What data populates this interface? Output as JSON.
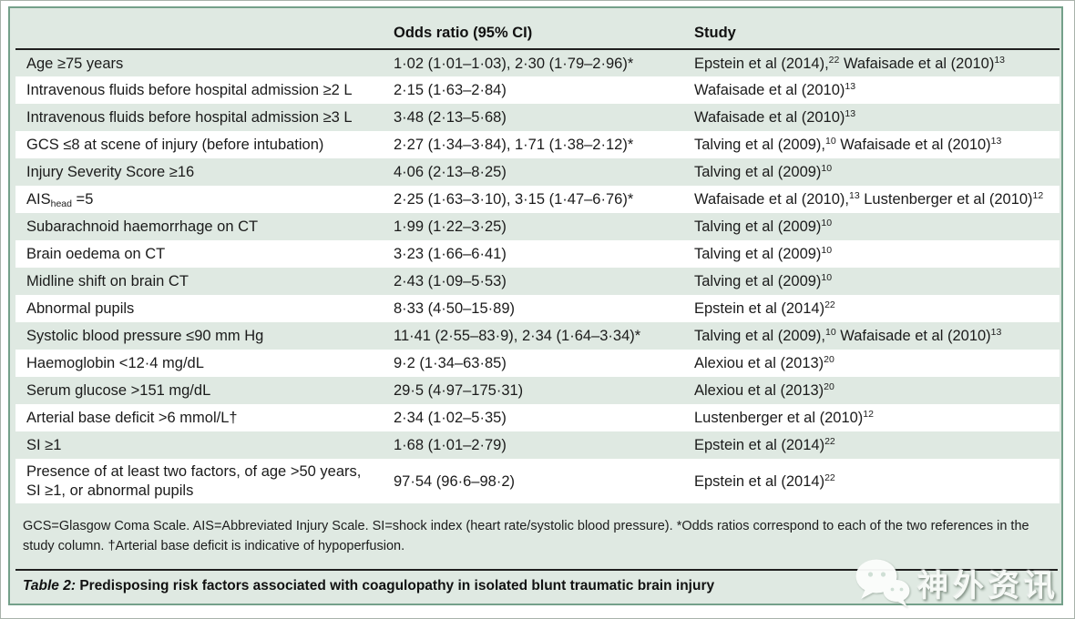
{
  "table": {
    "headers": [
      "",
      "Odds ratio (95% CI)",
      "Study"
    ],
    "rows": [
      {
        "factor": "Age ≥75 years",
        "odds_ratio": "1·02 (1·01–1·03), 2·30 (1·79–2·96)*",
        "study": "Epstein et al (2014),^22^ Wafaisade et al (2010)^13^"
      },
      {
        "factor": "Intravenous fluids before hospital admission ≥2 L",
        "odds_ratio": "2·15 (1·63–2·84)",
        "study": "Wafaisade et al (2010)^13^"
      },
      {
        "factor": "Intravenous fluids before hospital admission ≥3 L",
        "odds_ratio": "3·48 (2·13–5·68)",
        "study": "Wafaisade et al (2010)^13^"
      },
      {
        "factor": "GCS ≤8 at scene of injury (before intubation)",
        "odds_ratio": "2·27 (1·34–3·84), 1·71 (1·38–2·12)*",
        "study": "Talving et al (2009),^10^ Wafaisade et al (2010)^13^"
      },
      {
        "factor": "Injury Severity Score ≥16",
        "odds_ratio": "4·06 (2·13–8·25)",
        "study": "Talving et al (2009)^10^"
      },
      {
        "factor": "AIS~head~ =5",
        "odds_ratio": "2·25 (1·63–3·10), 3·15 (1·47–6·76)*",
        "study": "Wafaisade et al (2010),^13^ Lustenberger et al (2010)^12^"
      },
      {
        "factor": "Subarachnoid haemorrhage on CT",
        "odds_ratio": "1·99 (1·22–3·25)",
        "study": "Talving et al (2009)^10^"
      },
      {
        "factor": "Brain oedema on CT",
        "odds_ratio": "3·23 (1·66–6·41)",
        "study": "Talving et al (2009)^10^"
      },
      {
        "factor": "Midline shift on brain CT",
        "odds_ratio": "2·43 (1·09–5·53)",
        "study": "Talving et al (2009)^10^"
      },
      {
        "factor": "Abnormal pupils",
        "odds_ratio": "8·33 (4·50–15·89)",
        "study": "Epstein et al (2014)^22^"
      },
      {
        "factor": "Systolic blood pressure ≤90 mm Hg",
        "odds_ratio": "11·41 (2·55–83·9), 2·34 (1·64–3·34)*",
        "study": "Talving et al (2009),^10^ Wafaisade et al (2010)^13^"
      },
      {
        "factor": "Haemoglobin <12·4 mg/dL",
        "odds_ratio": "9·2 (1·34–63·85)",
        "study": "Alexiou et al (2013)^20^"
      },
      {
        "factor": "Serum glucose >151 mg/dL",
        "odds_ratio": "29·5 (4·97–175·31)",
        "study": "Alexiou et al (2013)^20^"
      },
      {
        "factor": "Arterial base deficit >6 mmol/L†",
        "odds_ratio": "2·34 (1·02–5·35)",
        "study": "Lustenberger et al (2010)^12^"
      },
      {
        "factor": "SI ≥1",
        "odds_ratio": "1·68 (1·01–2·79)",
        "study": "Epstein et al (2014)^22^"
      },
      {
        "factor": "Presence of at least two factors, of age >50 years, SI ≥1, or abnormal pupils",
        "odds_ratio": "97·54 (96·6–98·2)",
        "study": "Epstein et al (2014)^22^"
      }
    ]
  },
  "footnote": "GCS=Glasgow Coma Scale. AIS=Abbreviated Injury Scale. SI=shock index (heart rate/systolic blood pressure). *Odds ratios correspond to each of the two references in the study column. †Arterial base deficit is indicative of hypoperfusion.",
  "caption": {
    "label": "Table 2:",
    "text": "Predisposing risk factors associated with coagulopathy in isolated blunt traumatic brain injury"
  },
  "watermark": {
    "text": "神外资讯",
    "icon": "wechat-bubbles-icon"
  },
  "colors": {
    "panel_bg": "#dfe9e2",
    "row_alt": "#ffffff",
    "panel_border": "#74a08a",
    "rule": "#1f1f1f",
    "text": "#1b1b1b"
  }
}
